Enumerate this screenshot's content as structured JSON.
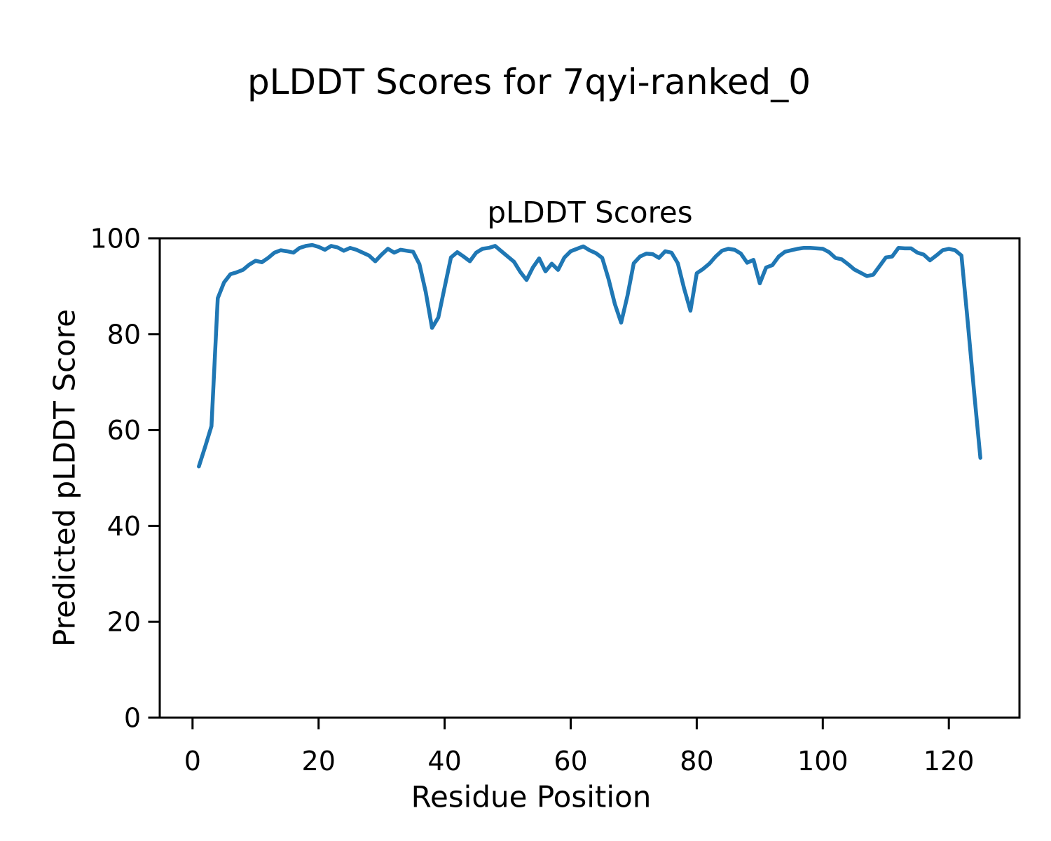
{
  "figure": {
    "suptitle": "pLDDT Scores for 7qyi-ranked_0"
  },
  "chart_data": {
    "type": "line",
    "title": "pLDDT Scores",
    "xlabel": "Residue Position",
    "ylabel": "Predicted pLDDT Score",
    "x_ticks": [
      0,
      20,
      40,
      60,
      80,
      100,
      120
    ],
    "y_ticks": [
      0,
      20,
      40,
      60,
      80,
      100
    ],
    "xlim": [
      -5.2,
      131.2
    ],
    "ylim": [
      0,
      100
    ],
    "grid": false,
    "legend": "none",
    "line_color": "#1f77b4",
    "series": [
      {
        "name": "pLDDT",
        "x_start": 1,
        "x_step": 1,
        "values": [
          52.4,
          56.5,
          60.8,
          87.5,
          90.8,
          92.5,
          92.9,
          93.4,
          94.5,
          95.3,
          95.0,
          95.9,
          97.0,
          97.5,
          97.3,
          97.0,
          98.0,
          98.4,
          98.6,
          98.2,
          97.6,
          98.4,
          98.1,
          97.4,
          98.0,
          97.6,
          97.0,
          96.4,
          95.2,
          96.6,
          97.8,
          97.0,
          97.6,
          97.4,
          97.2,
          94.6,
          88.8,
          81.3,
          83.5,
          89.8,
          96.0,
          97.1,
          96.2,
          95.2,
          97.0,
          97.8,
          98.0,
          98.4,
          97.3,
          96.2,
          95.1,
          93.0,
          91.3,
          93.9,
          95.8,
          93.1,
          94.7,
          93.4,
          96.0,
          97.3,
          97.8,
          98.3,
          97.5,
          96.9,
          95.9,
          91.5,
          86.3,
          82.4,
          88.0,
          94.8,
          96.2,
          96.8,
          96.7,
          95.9,
          97.3,
          97.0,
          94.8,
          89.5,
          84.9,
          92.7,
          93.6,
          94.7,
          96.2,
          97.4,
          97.8,
          97.6,
          96.8,
          94.9,
          95.5,
          90.6,
          93.9,
          94.4,
          96.2,
          97.2,
          97.5,
          97.8,
          98.0,
          98.0,
          97.9,
          97.8,
          97.1,
          95.9,
          95.6,
          94.6,
          93.5,
          92.8,
          92.1,
          92.4,
          94.2,
          96.0,
          96.2,
          98.0,
          97.9,
          97.9,
          97.0,
          96.6,
          95.4,
          96.4,
          97.5,
          97.8,
          97.5,
          96.4,
          82.5,
          68.0,
          54.2
        ]
      }
    ]
  }
}
